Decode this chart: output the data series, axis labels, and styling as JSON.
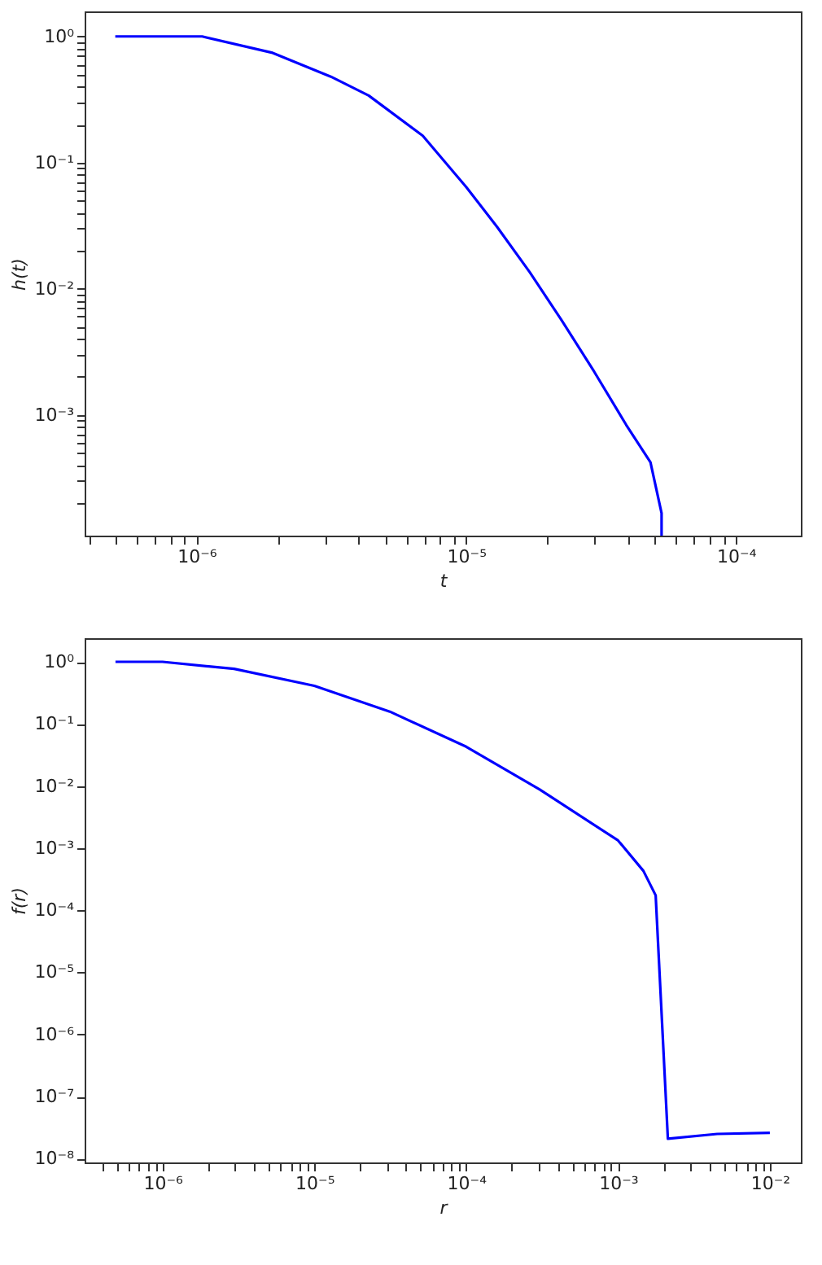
{
  "chart_data": [
    {
      "type": "line",
      "xlabel": "t",
      "ylabel": "h(t)",
      "log": "xy",
      "grid": false,
      "line_style": "solid",
      "x": [
        5e-07,
        1.05e-06,
        1.9e-06,
        3.15e-06,
        4.35e-06,
        6.9e-06,
        1e-05,
        1.3e-05,
        1.72e-05,
        2.26e-05,
        2.98e-05,
        3.92e-05,
        4.82e-05,
        5.3e-05,
        5.3e-05
      ],
      "series": [
        {
          "color": "#0000ff",
          "values": [
            1,
            1,
            0.745,
            0.48,
            0.34,
            0.163,
            0.064,
            0.031,
            0.0135,
            0.0056,
            0.0022,
            0.00083,
            0.00042,
            0.000166,
            0.00011
          ]
        }
      ],
      "xlim": [
        3.85e-07,
        0.000174
      ],
      "ylim": [
        0.00011,
        1.58
      ],
      "xticks": [
        {
          "value": 4e-07,
          "label": null
        },
        {
          "value": 5e-07,
          "label": null
        },
        {
          "value": 6e-07,
          "label": null
        },
        {
          "value": 7e-07,
          "label": null
        },
        {
          "value": 8e-07,
          "label": null
        },
        {
          "value": 9e-07,
          "label": null
        },
        {
          "value": 1e-06,
          "label": "10⁻⁶"
        },
        {
          "value": 2e-06,
          "label": null
        },
        {
          "value": 3e-06,
          "label": null
        },
        {
          "value": 4e-06,
          "label": null
        },
        {
          "value": 5e-06,
          "label": null
        },
        {
          "value": 6e-06,
          "label": null
        },
        {
          "value": 7e-06,
          "label": null
        },
        {
          "value": 8e-06,
          "label": null
        },
        {
          "value": 9e-06,
          "label": null
        },
        {
          "value": 1e-05,
          "label": "10⁻⁵"
        },
        {
          "value": 2e-05,
          "label": null
        },
        {
          "value": 3e-05,
          "label": null
        },
        {
          "value": 4e-05,
          "label": null
        },
        {
          "value": 5e-05,
          "label": null
        },
        {
          "value": 6e-05,
          "label": null
        },
        {
          "value": 7e-05,
          "label": null
        },
        {
          "value": 8e-05,
          "label": null
        },
        {
          "value": 9e-05,
          "label": null
        },
        {
          "value": 0.0001,
          "label": "10⁻⁴"
        }
      ],
      "yticks": [
        {
          "value": 0.0002,
          "label": null
        },
        {
          "value": 0.0003,
          "label": null
        },
        {
          "value": 0.0004,
          "label": null
        },
        {
          "value": 0.0005,
          "label": null
        },
        {
          "value": 0.0006,
          "label": null
        },
        {
          "value": 0.0007,
          "label": null
        },
        {
          "value": 0.0008,
          "label": null
        },
        {
          "value": 0.0009,
          "label": null
        },
        {
          "value": 0.001,
          "label": "10⁻³"
        },
        {
          "value": 0.002,
          "label": null
        },
        {
          "value": 0.003,
          "label": null
        },
        {
          "value": 0.004,
          "label": null
        },
        {
          "value": 0.005,
          "label": null
        },
        {
          "value": 0.006,
          "label": null
        },
        {
          "value": 0.007,
          "label": null
        },
        {
          "value": 0.008,
          "label": null
        },
        {
          "value": 0.009,
          "label": null
        },
        {
          "value": 0.01,
          "label": "10⁻²"
        },
        {
          "value": 0.02,
          "label": null
        },
        {
          "value": 0.03,
          "label": null
        },
        {
          "value": 0.04,
          "label": null
        },
        {
          "value": 0.05,
          "label": null
        },
        {
          "value": 0.06,
          "label": null
        },
        {
          "value": 0.07,
          "label": null
        },
        {
          "value": 0.08,
          "label": null
        },
        {
          "value": 0.09,
          "label": null
        },
        {
          "value": 0.1,
          "label": "10⁻¹"
        },
        {
          "value": 0.2,
          "label": null
        },
        {
          "value": 0.3,
          "label": null
        },
        {
          "value": 0.4,
          "label": null
        },
        {
          "value": 0.5,
          "label": null
        },
        {
          "value": 0.6,
          "label": null
        },
        {
          "value": 0.7,
          "label": null
        },
        {
          "value": 0.8,
          "label": null
        },
        {
          "value": 0.9,
          "label": null
        },
        {
          "value": 1,
          "label": "10⁰"
        }
      ]
    },
    {
      "type": "line",
      "xlabel": "r",
      "ylabel": "f(r)",
      "log": "xy",
      "grid": false,
      "line_style": "solid",
      "x": [
        4.9e-07,
        1e-06,
        2.96e-06,
        1e-05,
        3.14e-05,
        0.0001,
        0.000305,
        0.001,
        0.00147,
        0.00177,
        0.00213,
        0.0045,
        0.01
      ],
      "series": [
        {
          "color": "#0000ff",
          "values": [
            1,
            1,
            0.77,
            0.41,
            0.158,
            0.043,
            0.0088,
            0.00133,
            0.00043,
            0.000174,
            2.1e-08,
            2.5e-08,
            2.6e-08
          ]
        }
      ],
      "xlim": [
        3.07e-07,
        0.016
      ],
      "ylim": [
        8.7e-09,
        2.4
      ],
      "xticks": [
        {
          "value": 4e-07,
          "label": null
        },
        {
          "value": 5e-07,
          "label": null
        },
        {
          "value": 6e-07,
          "label": null
        },
        {
          "value": 7e-07,
          "label": null
        },
        {
          "value": 8e-07,
          "label": null
        },
        {
          "value": 9e-07,
          "label": null
        },
        {
          "value": 1e-06,
          "label": "10⁻⁶"
        },
        {
          "value": 2e-06,
          "label": null
        },
        {
          "value": 3e-06,
          "label": null
        },
        {
          "value": 4e-06,
          "label": null
        },
        {
          "value": 5e-06,
          "label": null
        },
        {
          "value": 6e-06,
          "label": null
        },
        {
          "value": 7e-06,
          "label": null
        },
        {
          "value": 8e-06,
          "label": null
        },
        {
          "value": 9e-06,
          "label": null
        },
        {
          "value": 1e-05,
          "label": "10⁻⁵"
        },
        {
          "value": 2e-05,
          "label": null
        },
        {
          "value": 3e-05,
          "label": null
        },
        {
          "value": 4e-05,
          "label": null
        },
        {
          "value": 5e-05,
          "label": null
        },
        {
          "value": 6e-05,
          "label": null
        },
        {
          "value": 7e-05,
          "label": null
        },
        {
          "value": 8e-05,
          "label": null
        },
        {
          "value": 9e-05,
          "label": null
        },
        {
          "value": 0.0001,
          "label": "10⁻⁴"
        },
        {
          "value": 0.0002,
          "label": null
        },
        {
          "value": 0.0003,
          "label": null
        },
        {
          "value": 0.0004,
          "label": null
        },
        {
          "value": 0.0005,
          "label": null
        },
        {
          "value": 0.0006,
          "label": null
        },
        {
          "value": 0.0007,
          "label": null
        },
        {
          "value": 0.0008,
          "label": null
        },
        {
          "value": 0.0009,
          "label": null
        },
        {
          "value": 0.001,
          "label": "10⁻³"
        },
        {
          "value": 0.002,
          "label": null
        },
        {
          "value": 0.003,
          "label": null
        },
        {
          "value": 0.004,
          "label": null
        },
        {
          "value": 0.005,
          "label": null
        },
        {
          "value": 0.006,
          "label": null
        },
        {
          "value": 0.007,
          "label": null
        },
        {
          "value": 0.008,
          "label": null
        },
        {
          "value": 0.009,
          "label": null
        },
        {
          "value": 0.01,
          "label": "10⁻²"
        }
      ],
      "yticks": [
        {
          "value": 1e-08,
          "label": "10⁻⁸"
        },
        {
          "value": 1e-07,
          "label": "10⁻⁷"
        },
        {
          "value": 1e-06,
          "label": "10⁻⁶"
        },
        {
          "value": 1e-05,
          "label": "10⁻⁵"
        },
        {
          "value": 0.0001,
          "label": "10⁻⁴"
        },
        {
          "value": 0.001,
          "label": "10⁻³"
        },
        {
          "value": 0.01,
          "label": "10⁻²"
        },
        {
          "value": 0.1,
          "label": "10⁻¹"
        },
        {
          "value": 1,
          "label": "10⁰"
        }
      ]
    }
  ]
}
